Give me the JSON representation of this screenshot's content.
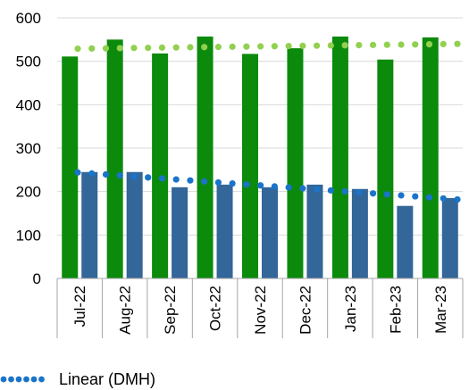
{
  "chart_data": {
    "type": "bar",
    "categories": [
      "Jul-22",
      "Aug-22",
      "Sep-22",
      "Oct-22",
      "Nov-22",
      "Dec-22",
      "Jan-23",
      "Feb-23",
      "Mar-23"
    ],
    "series": [
      {
        "values": [
          511,
          550,
          518,
          557,
          517,
          530,
          557,
          504,
          555
        ],
        "color": "#0c8a0c"
      },
      {
        "values": [
          245,
          245,
          210,
          216,
          210,
          216,
          206,
          167,
          185
        ],
        "color": "#336699"
      }
    ],
    "trendlines": [
      {
        "name": "Linear (DMH)",
        "type": "linear",
        "start": 244,
        "end": 182,
        "color": "#1a74c9"
      },
      {
        "type": "linear",
        "start": 529,
        "end": 540,
        "color": "#92d050"
      }
    ],
    "ylim": [
      0,
      600
    ],
    "yticks": [
      0,
      100,
      200,
      300,
      400,
      500,
      600
    ],
    "grid": true,
    "legend": {
      "position": "bottom-left",
      "entries": [
        "Linear (DMH)"
      ]
    }
  }
}
